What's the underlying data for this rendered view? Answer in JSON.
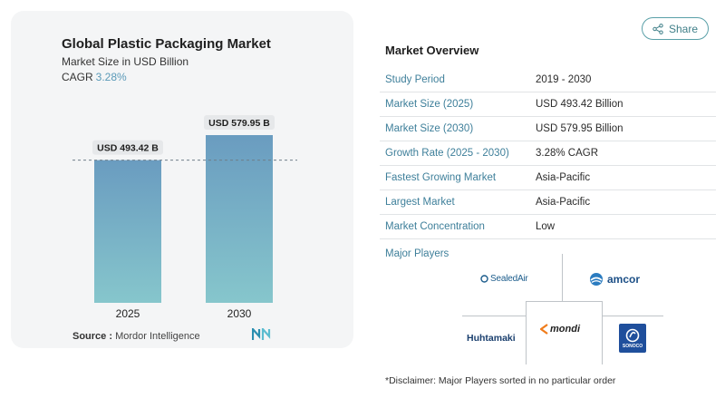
{
  "chart_data": {
    "type": "bar",
    "title": "Global Plastic Packaging Market",
    "subtitle": "Market Size in USD Billion",
    "cagr_label": "CAGR",
    "cagr_value": "3.28%",
    "categories": [
      "2025",
      "2030"
    ],
    "values": [
      493.42,
      579.95
    ],
    "data_labels": [
      "USD 493.42 B",
      "USD 579.95 B"
    ],
    "ylim": [
      0,
      580
    ],
    "grid": false,
    "dashed_reference_line": true
  },
  "source": {
    "label": "Source :",
    "text": "Mordor Intelligence"
  },
  "share": {
    "label": "Share",
    "icon": "share-icon"
  },
  "overview": {
    "title": "Market Overview",
    "rows": [
      {
        "key": "Study Period",
        "value": "2019 - 2030"
      },
      {
        "key": "Market Size (2025)",
        "value": "USD 493.42 Billion"
      },
      {
        "key": "Market Size (2030)",
        "value": "USD 579.95 Billion"
      },
      {
        "key": "Growth Rate (2025 - 2030)",
        "value": "3.28% CAGR"
      },
      {
        "key": "Fastest Growing Market",
        "value": "Asia-Pacific"
      },
      {
        "key": "Largest Market",
        "value": "Asia-Pacific"
      },
      {
        "key": "Market Concentration",
        "value": "Low"
      }
    ]
  },
  "players": {
    "title": "Major Players",
    "logos": [
      "SealedAir",
      "amcor",
      "Huhtamaki",
      "mondi",
      "SONOCO"
    ]
  },
  "disclaimer": "*Disclaimer: Major Players sorted in no particular order",
  "colors": {
    "bar_top": "#6a9cc0",
    "bar_bottom": "#86c6cc",
    "accent": "#3e7f9a",
    "share_border": "#5aa0a8"
  }
}
